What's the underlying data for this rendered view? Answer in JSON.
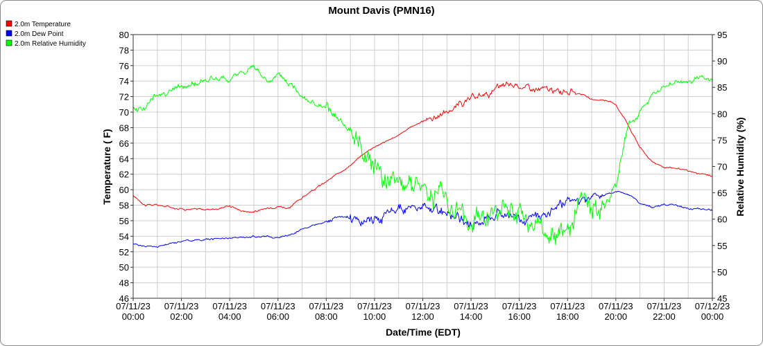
{
  "chart_data": {
    "type": "line",
    "title": "Mount Davis (PMN16)",
    "xlabel": "Date/Time (EDT)",
    "ylabel": "Temperature ( F)",
    "y2label": "Relative Humidity (%)",
    "ylim": [
      46,
      80
    ],
    "y2lim": [
      45,
      95
    ],
    "y_ticks": [
      "46",
      "48",
      "50",
      "52",
      "54",
      "56",
      "58",
      "60",
      "62",
      "64",
      "66",
      "68",
      "70",
      "72",
      "74",
      "76",
      "78",
      "80"
    ],
    "y2_ticks": [
      "45",
      "50",
      "55",
      "60",
      "65",
      "70",
      "75",
      "80",
      "85",
      "90",
      "95"
    ],
    "x_ticks": [
      {
        "date": "07/11/23",
        "time": "00:00"
      },
      {
        "date": "07/11/23",
        "time": "02:00"
      },
      {
        "date": "07/11/23",
        "time": "04:00"
      },
      {
        "date": "07/11/23",
        "time": "06:00"
      },
      {
        "date": "07/11/23",
        "time": "08:00"
      },
      {
        "date": "07/11/23",
        "time": "10:00"
      },
      {
        "date": "07/11/23",
        "time": "12:00"
      },
      {
        "date": "07/11/23",
        "time": "14:00"
      },
      {
        "date": "07/11/23",
        "time": "16:00"
      },
      {
        "date": "07/11/23",
        "time": "18:00"
      },
      {
        "date": "07/11/23",
        "time": "20:00"
      },
      {
        "date": "07/11/23",
        "time": "22:00"
      },
      {
        "date": "07/12/23",
        "time": "00:00"
      }
    ],
    "x_hours": [
      0,
      0.5,
      1,
      1.5,
      2,
      2.5,
      3,
      3.5,
      4,
      4.5,
      5,
      5.5,
      6,
      6.5,
      7,
      7.5,
      8,
      8.5,
      9,
      9.5,
      10,
      10.5,
      11,
      11.5,
      12,
      12.5,
      13,
      13.5,
      14,
      14.5,
      15,
      15.5,
      16,
      16.5,
      17,
      17.5,
      18,
      18.5,
      19,
      19.5,
      20,
      20.5,
      21,
      21.5,
      22,
      22.5,
      23,
      23.5,
      24
    ],
    "legend_position": "top-left",
    "series": [
      {
        "name": "2.0m Temperature",
        "color": "#ff0000",
        "axis": "left",
        "values": [
          59.2,
          58.1,
          58.0,
          57.8,
          57.6,
          57.5,
          57.4,
          57.6,
          58.0,
          57.3,
          57.2,
          57.5,
          58.0,
          57.6,
          59.0,
          60.0,
          61.0,
          62.1,
          63.2,
          64.5,
          65.6,
          66.3,
          67.0,
          68.0,
          68.9,
          69.5,
          70.0,
          71.0,
          71.5,
          72.2,
          72.8,
          73.3,
          73.5,
          73.0,
          72.9,
          72.5,
          72.8,
          72.6,
          71.5,
          71.6,
          71.0,
          68.5,
          65.5,
          63.6,
          63.0,
          62.8,
          62.3,
          62.0,
          61.7
        ]
      },
      {
        "name": "2.0m Dew Point",
        "color": "#0000ff",
        "axis": "left",
        "values": [
          53.0,
          52.7,
          52.6,
          53.0,
          53.4,
          53.5,
          53.6,
          53.7,
          53.8,
          53.8,
          54.0,
          54.0,
          53.8,
          54.2,
          55.0,
          55.5,
          56.0,
          56.2,
          56.3,
          56.0,
          56.3,
          56.8,
          57.2,
          57.6,
          57.4,
          57.2,
          57.0,
          56.2,
          55.5,
          56.0,
          57.1,
          57.0,
          55.8,
          56.6,
          57.2,
          58.0,
          58.2,
          58.0,
          58.5,
          59.2,
          59.8,
          59.5,
          58.3,
          57.8,
          58.0,
          57.9,
          57.6,
          57.5,
          57.3
        ]
      },
      {
        "name": "2.0m Relative Humidity",
        "color": "#00ff00",
        "axis": "right",
        "values": [
          80.5,
          81.5,
          83.5,
          84.5,
          85.0,
          85.5,
          86.5,
          86.5,
          86.0,
          88.0,
          88.5,
          86.5,
          87.0,
          85.5,
          84.0,
          82.0,
          80.5,
          78.0,
          75.5,
          74.0,
          70.5,
          69.0,
          68.5,
          67.5,
          66.5,
          65.0,
          64.0,
          62.0,
          58.0,
          61.0,
          61.5,
          61.0,
          60.0,
          58.5,
          57.0,
          56.0,
          59.0,
          61.5,
          60.5,
          61.5,
          67.0,
          78.0,
          80.5,
          83.5,
          85.0,
          86.0,
          86.0,
          87.0,
          86.0
        ]
      }
    ]
  }
}
